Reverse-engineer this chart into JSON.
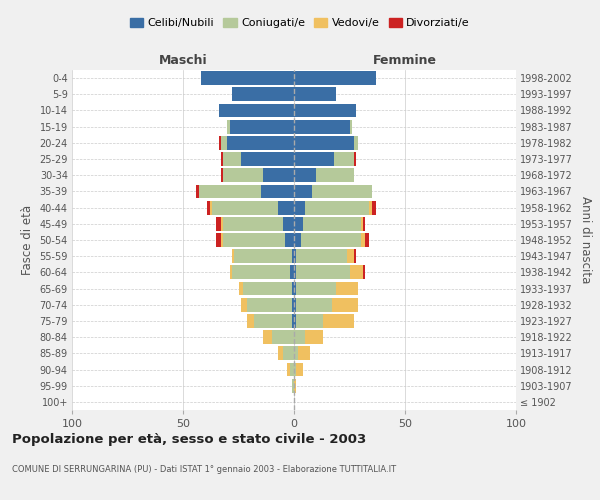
{
  "age_groups": [
    "100+",
    "95-99",
    "90-94",
    "85-89",
    "80-84",
    "75-79",
    "70-74",
    "65-69",
    "60-64",
    "55-59",
    "50-54",
    "45-49",
    "40-44",
    "35-39",
    "30-34",
    "25-29",
    "20-24",
    "15-19",
    "10-14",
    "5-9",
    "0-4"
  ],
  "birth_years": [
    "≤ 1902",
    "1903-1907",
    "1908-1912",
    "1913-1917",
    "1918-1922",
    "1923-1927",
    "1928-1932",
    "1933-1937",
    "1938-1942",
    "1943-1947",
    "1948-1952",
    "1953-1957",
    "1958-1962",
    "1963-1967",
    "1968-1972",
    "1973-1977",
    "1978-1982",
    "1983-1987",
    "1988-1992",
    "1993-1997",
    "1998-2002"
  ],
  "male": {
    "celibi": [
      0,
      0,
      0,
      0,
      0,
      1,
      1,
      1,
      2,
      1,
      4,
      5,
      7,
      15,
      14,
      24,
      30,
      29,
      34,
      28,
      42
    ],
    "coniugati": [
      0,
      1,
      2,
      5,
      10,
      17,
      20,
      22,
      26,
      26,
      28,
      27,
      30,
      28,
      18,
      8,
      3,
      1,
      0,
      0,
      0
    ],
    "vedovi": [
      0,
      0,
      1,
      2,
      4,
      3,
      3,
      2,
      1,
      1,
      1,
      1,
      1,
      0,
      0,
      0,
      0,
      0,
      0,
      0,
      0
    ],
    "divorziati": [
      0,
      0,
      0,
      0,
      0,
      0,
      0,
      0,
      0,
      0,
      2,
      2,
      1,
      1,
      1,
      1,
      1,
      0,
      0,
      0,
      0
    ]
  },
  "female": {
    "nubili": [
      0,
      0,
      0,
      0,
      0,
      1,
      1,
      1,
      1,
      1,
      3,
      4,
      5,
      8,
      10,
      18,
      27,
      25,
      28,
      19,
      37
    ],
    "coniugate": [
      0,
      0,
      1,
      2,
      5,
      12,
      16,
      18,
      24,
      23,
      27,
      26,
      29,
      27,
      17,
      9,
      2,
      1,
      0,
      0,
      0
    ],
    "vedove": [
      0,
      1,
      3,
      5,
      8,
      14,
      12,
      10,
      6,
      3,
      2,
      1,
      1,
      0,
      0,
      0,
      0,
      0,
      0,
      0,
      0
    ],
    "divorziate": [
      0,
      0,
      0,
      0,
      0,
      0,
      0,
      0,
      1,
      1,
      2,
      1,
      2,
      0,
      0,
      1,
      0,
      0,
      0,
      0,
      0
    ]
  },
  "colors": {
    "celibi_nubili": "#3A6EA5",
    "coniugati_e": "#B5C99A",
    "vedovi_e": "#F0C060",
    "divorziati_e": "#CC2222"
  },
  "xlim": 100,
  "title": "Popolazione per età, sesso e stato civile - 2003",
  "subtitle": "COMUNE DI SERRUNGARINA (PU) - Dati ISTAT 1° gennaio 2003 - Elaborazione TUTTITALIA.IT",
  "xlabel_left": "Maschi",
  "xlabel_right": "Femmine",
  "ylabel_left": "Fasce di età",
  "ylabel_right": "Anni di nascita",
  "bg_color": "#f0f0f0",
  "plot_bg_color": "#ffffff",
  "grid_color": "#cccccc"
}
